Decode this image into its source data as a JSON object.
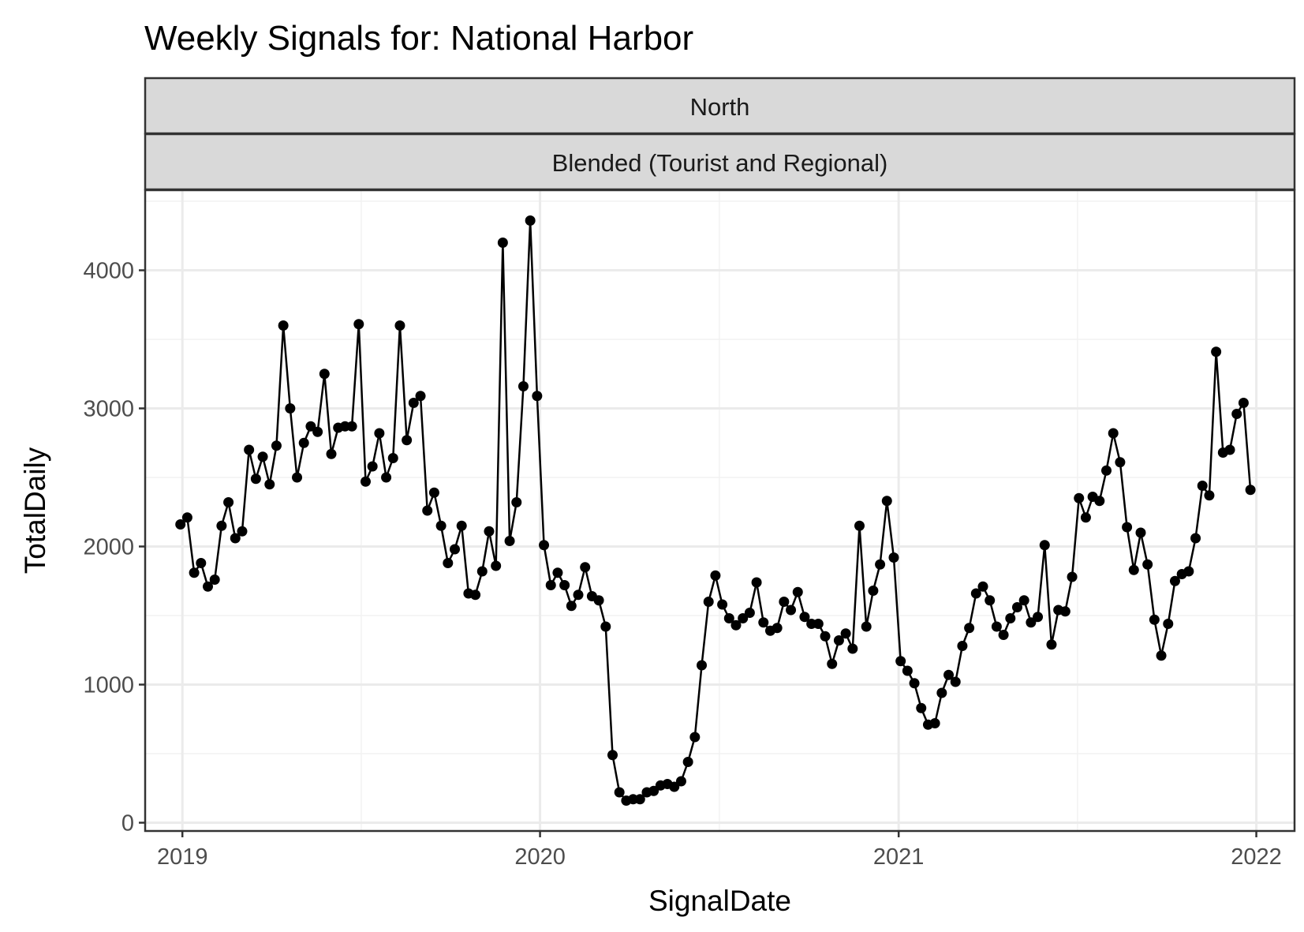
{
  "chart_data": {
    "type": "line",
    "title": "Weekly Signals for: National Harbor",
    "facet_strips": [
      "North",
      "Blended (Tourist and Regional)"
    ],
    "xlabel": "SignalDate",
    "ylabel": "TotalDaily",
    "xlim": [
      "2018-11-24",
      "2022-02-09"
    ],
    "ylim": [
      -60,
      4580
    ],
    "x_ticks": [
      "2019-01-01",
      "2020-01-01",
      "2021-01-01",
      "2022-01-01"
    ],
    "x_tick_labels": [
      "2019",
      "2020",
      "2021",
      "2022"
    ],
    "y_ticks": [
      0,
      1000,
      2000,
      3000,
      4000
    ],
    "y_tick_labels": [
      "0",
      "1000",
      "2000",
      "3000",
      "4000"
    ],
    "grid": true,
    "theme": "bw",
    "line_color": "#000000",
    "point_color": "#000000",
    "strip_fill": "#d9d9d9",
    "x": [
      "2018-12-30",
      "2019-01-06",
      "2019-01-13",
      "2019-01-20",
      "2019-01-27",
      "2019-02-03",
      "2019-02-10",
      "2019-02-17",
      "2019-02-24",
      "2019-03-03",
      "2019-03-10",
      "2019-03-17",
      "2019-03-24",
      "2019-03-31",
      "2019-04-07",
      "2019-04-14",
      "2019-04-21",
      "2019-04-28",
      "2019-05-05",
      "2019-05-12",
      "2019-05-19",
      "2019-05-26",
      "2019-06-02",
      "2019-06-09",
      "2019-06-16",
      "2019-06-23",
      "2019-06-30",
      "2019-07-07",
      "2019-07-14",
      "2019-07-21",
      "2019-07-28",
      "2019-08-04",
      "2019-08-11",
      "2019-08-18",
      "2019-08-25",
      "2019-09-01",
      "2019-09-08",
      "2019-09-15",
      "2019-09-22",
      "2019-09-29",
      "2019-10-06",
      "2019-10-13",
      "2019-10-20",
      "2019-10-27",
      "2019-11-03",
      "2019-11-10",
      "2019-11-17",
      "2019-11-24",
      "2019-12-01",
      "2019-12-08",
      "2019-12-15",
      "2019-12-22",
      "2019-12-29",
      "2020-01-05",
      "2020-01-12",
      "2020-01-19",
      "2020-01-26",
      "2020-02-02",
      "2020-02-09",
      "2020-02-16",
      "2020-02-23",
      "2020-03-01",
      "2020-03-08",
      "2020-03-15",
      "2020-03-22",
      "2020-03-29",
      "2020-04-05",
      "2020-04-12",
      "2020-04-19",
      "2020-04-26",
      "2020-05-03",
      "2020-05-10",
      "2020-05-17",
      "2020-05-24",
      "2020-05-31",
      "2020-06-07",
      "2020-06-14",
      "2020-06-21",
      "2020-06-28",
      "2020-07-05",
      "2020-07-12",
      "2020-07-19",
      "2020-07-26",
      "2020-08-02",
      "2020-08-09",
      "2020-08-16",
      "2020-08-23",
      "2020-08-30",
      "2020-09-06",
      "2020-09-13",
      "2020-09-20",
      "2020-09-27",
      "2020-10-04",
      "2020-10-11",
      "2020-10-18",
      "2020-10-25",
      "2020-11-01",
      "2020-11-08",
      "2020-11-15",
      "2020-11-22",
      "2020-11-29",
      "2020-12-06",
      "2020-12-13",
      "2020-12-20",
      "2020-12-27",
      "2021-01-03",
      "2021-01-10",
      "2021-01-17",
      "2021-01-24",
      "2021-01-31",
      "2021-02-07",
      "2021-02-14",
      "2021-02-21",
      "2021-02-28",
      "2021-03-07",
      "2021-03-14",
      "2021-03-21",
      "2021-03-28",
      "2021-04-04",
      "2021-04-11",
      "2021-04-18",
      "2021-04-25",
      "2021-05-02",
      "2021-05-09",
      "2021-05-16",
      "2021-05-23",
      "2021-05-30",
      "2021-06-06",
      "2021-06-13",
      "2021-06-20",
      "2021-06-27",
      "2021-07-04",
      "2021-07-11",
      "2021-07-18",
      "2021-07-25",
      "2021-08-01",
      "2021-08-08",
      "2021-08-15",
      "2021-08-22",
      "2021-08-29",
      "2021-09-05",
      "2021-09-12",
      "2021-09-19",
      "2021-09-26",
      "2021-10-03",
      "2021-10-10",
      "2021-10-17",
      "2021-10-24",
      "2021-10-31",
      "2021-11-07",
      "2021-11-14",
      "2021-11-21",
      "2021-11-28",
      "2021-12-05",
      "2021-12-12",
      "2021-12-19",
      "2021-12-26"
    ],
    "y": [
      2160,
      2210,
      1810,
      1880,
      1710,
      1760,
      2150,
      2320,
      2060,
      2110,
      2700,
      2490,
      2650,
      2450,
      2730,
      3600,
      3000,
      2500,
      2750,
      2870,
      2830,
      3250,
      2670,
      2860,
      2870,
      2870,
      3610,
      2470,
      2580,
      2820,
      2500,
      2640,
      3600,
      2770,
      3040,
      3090,
      2260,
      2390,
      2150,
      1880,
      1980,
      2150,
      1660,
      1650,
      1820,
      2110,
      1860,
      4200,
      2040,
      2320,
      3160,
      4360,
      3090,
      2010,
      1720,
      1810,
      1720,
      1570,
      1650,
      1850,
      1640,
      1610,
      1420,
      490,
      220,
      160,
      170,
      170,
      220,
      230,
      270,
      280,
      260,
      300,
      440,
      620,
      1140,
      1600,
      1790,
      1580,
      1480,
      1430,
      1480,
      1520,
      1740,
      1450,
      1390,
      1410,
      1600,
      1540,
      1670,
      1490,
      1440,
      1440,
      1350,
      1150,
      1320,
      1370,
      1260,
      2150,
      1420,
      1680,
      1870,
      2330,
      1920,
      1170,
      1100,
      1010,
      830,
      710,
      720,
      940,
      1070,
      1020,
      1280,
      1410,
      1660,
      1710,
      1610,
      1420,
      1360,
      1480,
      1560,
      1610,
      1450,
      1490,
      2010,
      1290,
      1540,
      1530,
      1780,
      2350,
      2210,
      2360,
      2330,
      2550,
      2820,
      2610,
      2140,
      1830,
      2100,
      1870,
      1470,
      1210,
      1440,
      1750,
      1800,
      1820,
      2060,
      2440,
      2370,
      3410,
      2680,
      2700,
      2960,
      3040,
      2410
    ]
  }
}
